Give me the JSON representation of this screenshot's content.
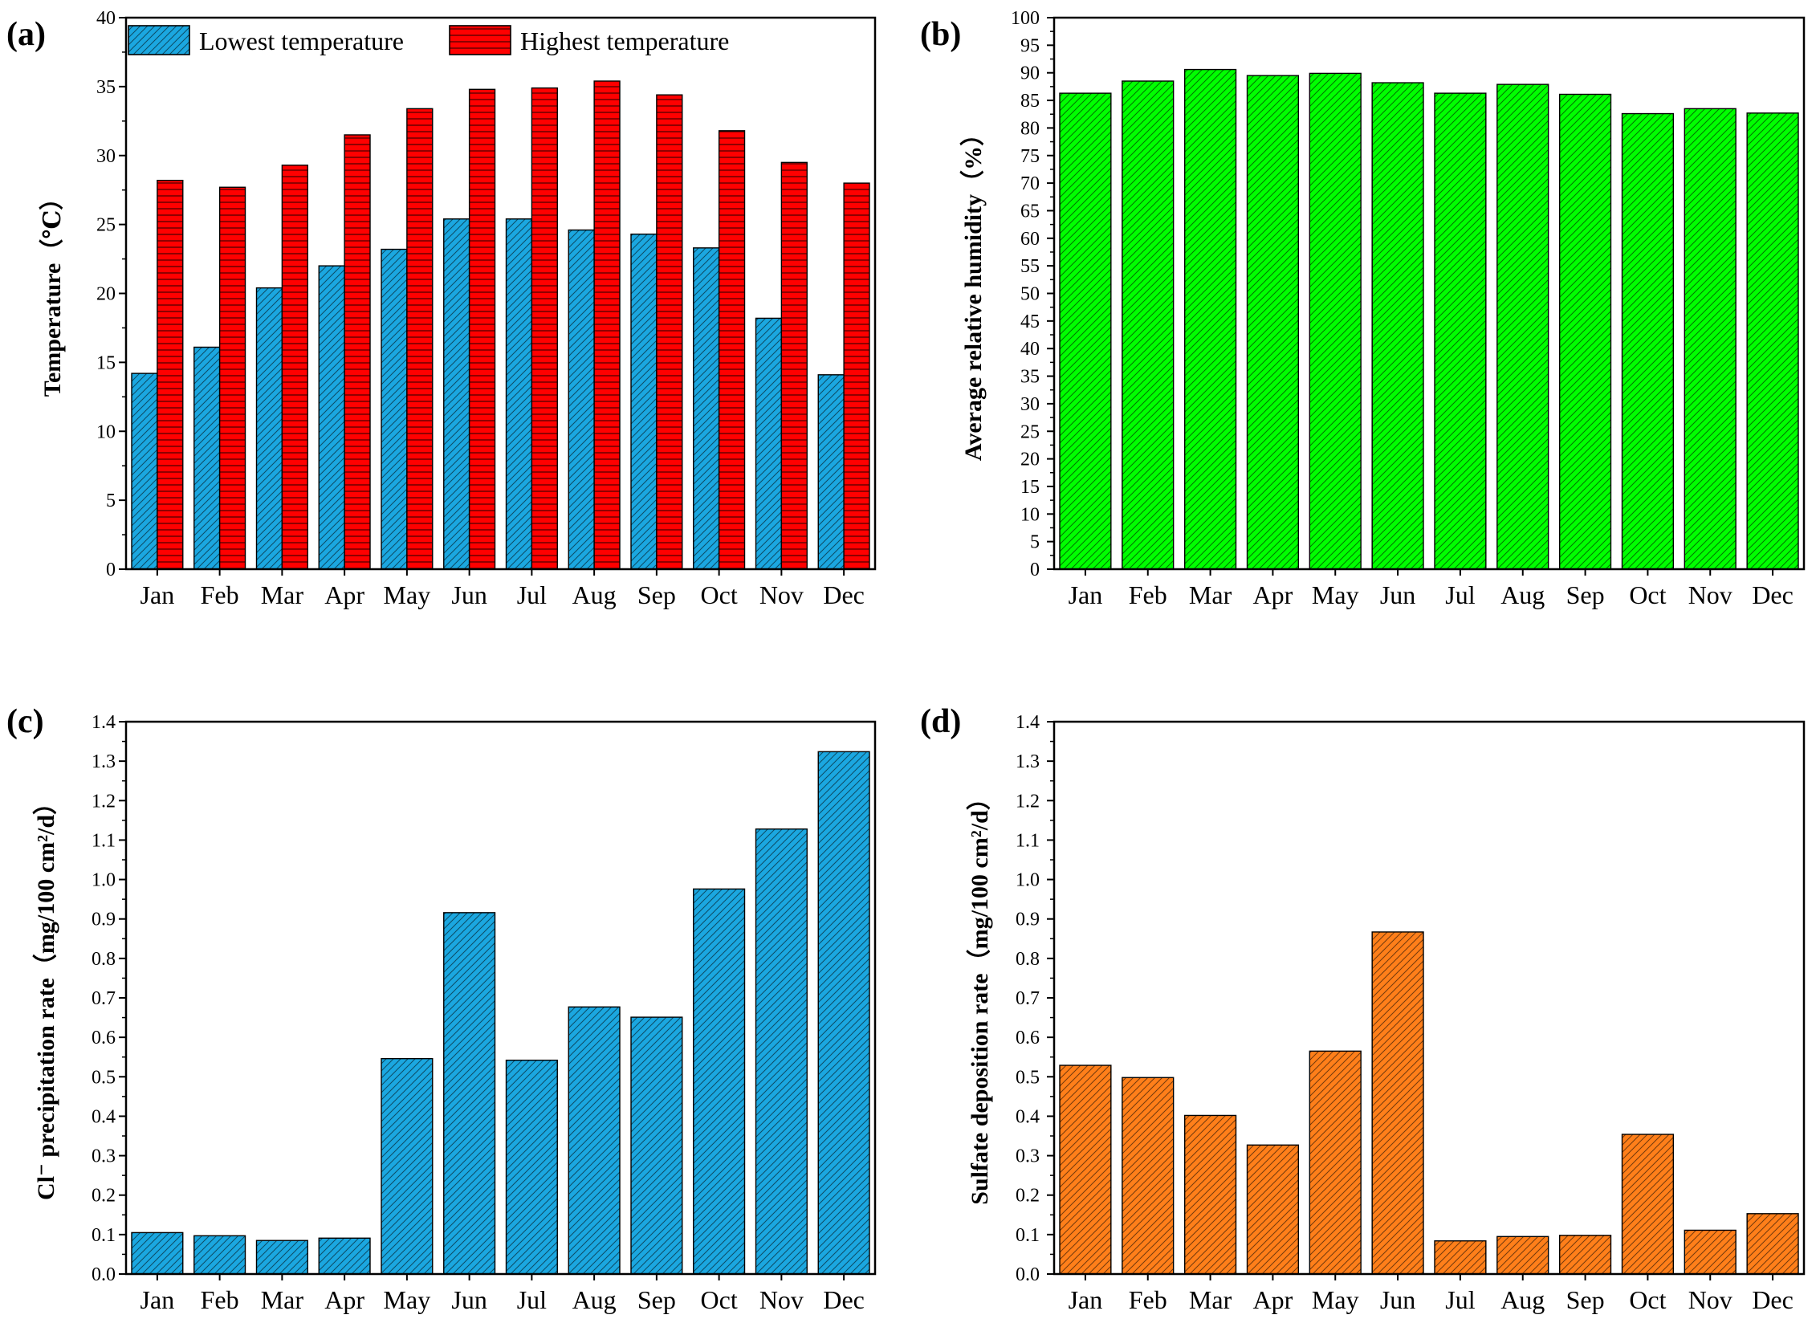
{
  "colors": {
    "blue": "#1ba7e0",
    "red": "#ff0000",
    "green": "#00ff00",
    "orange": "#ff7f1a",
    "edge": "#000000"
  },
  "chart_data": [
    {
      "id": "a",
      "panel_label": "(a)",
      "type": "bar",
      "ylabel": "Temperature（℃）",
      "ylim": [
        0,
        40
      ],
      "ytick_step": 5,
      "ytick_labels": [
        "0",
        "5",
        "10",
        "15",
        "20",
        "25",
        "30",
        "35",
        "40"
      ],
      "categories": [
        "Jan",
        "Feb",
        "Mar",
        "Apr",
        "May",
        "Jun",
        "Jul",
        "Aug",
        "Sep",
        "Oct",
        "Nov",
        "Dec"
      ],
      "legend_position": "top-left",
      "series": [
        {
          "name": "Lowest temperature",
          "color_key": "blue",
          "hatch": "diag",
          "values": [
            14.2,
            16.1,
            20.4,
            22.0,
            23.2,
            25.4,
            25.4,
            24.6,
            24.3,
            23.3,
            18.2,
            14.1
          ]
        },
        {
          "name": "Highest temperature",
          "color_key": "red",
          "hatch": "horiz",
          "values": [
            28.2,
            27.7,
            29.3,
            31.5,
            33.4,
            34.8,
            34.9,
            35.4,
            34.4,
            31.8,
            29.5,
            28.0
          ]
        }
      ]
    },
    {
      "id": "b",
      "panel_label": "(b)",
      "type": "bar",
      "ylabel": "Average relative humidity（%）",
      "ylim": [
        0,
        100
      ],
      "ytick_step": 5,
      "ytick_labels": [
        "0",
        "5",
        "10",
        "15",
        "20",
        "25",
        "30",
        "35",
        "40",
        "45",
        "50",
        "55",
        "60",
        "65",
        "70",
        "75",
        "80",
        "85",
        "90",
        "95",
        "100"
      ],
      "categories": [
        "Jan",
        "Feb",
        "Mar",
        "Apr",
        "May",
        "Jun",
        "Jul",
        "Aug",
        "Sep",
        "Oct",
        "Nov",
        "Dec"
      ],
      "series": [
        {
          "name": "Average relative humidity",
          "color_key": "green",
          "hatch": "diag",
          "values": [
            86.3,
            88.5,
            90.6,
            89.5,
            89.9,
            88.2,
            86.3,
            87.9,
            86.1,
            82.6,
            83.5,
            82.7
          ]
        }
      ]
    },
    {
      "id": "c",
      "panel_label": "(c)",
      "type": "bar",
      "ylabel": "Cl⁻ precipitation rate（mg/100 cm²/d）",
      "ylim": [
        0,
        1.4
      ],
      "ytick_step": 0.1,
      "ytick_labels": [
        "0.0",
        "0.1",
        "0.2",
        "0.3",
        "0.4",
        "0.5",
        "0.6",
        "0.7",
        "0.8",
        "0.9",
        "1.0",
        "1.1",
        "1.2",
        "1.3",
        "1.4"
      ],
      "categories": [
        "Jan",
        "Feb",
        "Mar",
        "Apr",
        "May",
        "Jun",
        "Jul",
        "Aug",
        "Sep",
        "Oct",
        "Nov",
        "Dec"
      ],
      "series": [
        {
          "name": "Cl- precipitation rate",
          "color_key": "blue",
          "hatch": "diag",
          "values": [
            0.105,
            0.097,
            0.085,
            0.091,
            0.546,
            0.916,
            0.542,
            0.677,
            0.651,
            0.976,
            1.128,
            1.324
          ]
        }
      ]
    },
    {
      "id": "d",
      "panel_label": "(d)",
      "type": "bar",
      "ylabel": "Sulfate deposition rate（mg/100 cm²/d）",
      "ylim": [
        0,
        1.4
      ],
      "ytick_step": 0.1,
      "ytick_labels": [
        "0.0",
        "0.1",
        "0.2",
        "0.3",
        "0.4",
        "0.5",
        "0.6",
        "0.7",
        "0.8",
        "0.9",
        "1.0",
        "1.1",
        "1.2",
        "1.3",
        "1.4"
      ],
      "categories": [
        "Jan",
        "Feb",
        "Mar",
        "Apr",
        "May",
        "Jun",
        "Jul",
        "Aug",
        "Sep",
        "Oct",
        "Nov",
        "Dec"
      ],
      "series": [
        {
          "name": "Sulfate deposition rate",
          "color_key": "orange",
          "hatch": "diag",
          "values": [
            0.529,
            0.498,
            0.402,
            0.327,
            0.565,
            0.867,
            0.084,
            0.095,
            0.098,
            0.354,
            0.111,
            0.153
          ]
        }
      ]
    }
  ]
}
